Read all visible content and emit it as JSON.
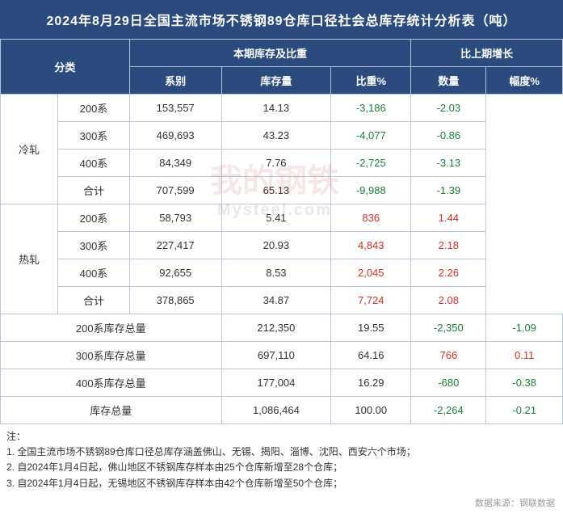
{
  "title": "2024年8月29日全国主流市场不锈钢89仓库口径社会总库存统计分析表（吨）",
  "headers": {
    "category": "分类",
    "currentGroup": "本期库存及比重",
    "changeGroup": "比上期增长",
    "series": "系别",
    "inventory": "库存量",
    "weight": "比重%",
    "qty": "数量",
    "pct": "幅度%"
  },
  "groups": [
    {
      "name": "冷轧",
      "rows": [
        {
          "series": "200系",
          "inventory": "153,557",
          "weight": "14.13",
          "qty": "-3,186",
          "pct": "-2.03",
          "sign": "neg"
        },
        {
          "series": "300系",
          "inventory": "469,693",
          "weight": "43.23",
          "qty": "-4,077",
          "pct": "-0.86",
          "sign": "neg"
        },
        {
          "series": "400系",
          "inventory": "84,349",
          "weight": "7.76",
          "qty": "-2,725",
          "pct": "-3.13",
          "sign": "neg"
        },
        {
          "series": "合计",
          "inventory": "707,599",
          "weight": "65.13",
          "qty": "-9,988",
          "pct": "-1.39",
          "sign": "neg"
        }
      ]
    },
    {
      "name": "热轧",
      "rows": [
        {
          "series": "200系",
          "inventory": "58,793",
          "weight": "5.41",
          "qty": "836",
          "pct": "1.44",
          "sign": "pos"
        },
        {
          "series": "300系",
          "inventory": "227,417",
          "weight": "20.93",
          "qty": "4,843",
          "pct": "2.18",
          "sign": "pos"
        },
        {
          "series": "400系",
          "inventory": "92,655",
          "weight": "8.53",
          "qty": "2,045",
          "pct": "2.26",
          "sign": "pos"
        },
        {
          "series": "合计",
          "inventory": "378,865",
          "weight": "34.87",
          "qty": "7,724",
          "pct": "2.08",
          "sign": "pos"
        }
      ]
    }
  ],
  "totals": [
    {
      "label": "200系库存总量",
      "inventory": "212,350",
      "weight": "19.55",
      "qty": "-2,350",
      "pct": "-1.09",
      "sign": "neg"
    },
    {
      "label": "300系库存总量",
      "inventory": "697,110",
      "weight": "64.16",
      "qty": "766",
      "pct": "0.11",
      "sign": "pos"
    },
    {
      "label": "400系库存总量",
      "inventory": "177,004",
      "weight": "16.29",
      "qty": "-680",
      "pct": "-0.38",
      "sign": "neg"
    },
    {
      "label": "库存总量",
      "inventory": "1,086,464",
      "weight": "100.00",
      "qty": "-2,264",
      "pct": "-0.21",
      "sign": "neg"
    }
  ],
  "notesTitle": "注：",
  "notes": [
    "1. 全国主流市场不锈钢89仓库口径总库存涵盖佛山、无锡、揭阳、淄博、沈阳、西安六个市场；",
    "2. 自2024年1月4日起，佛山地区不锈钢库存样本由25个仓库新增至28个仓库；",
    "3. 自2024年1月4日起，无锡地区不锈钢库存样本由42个仓库新增至50个仓库；"
  ],
  "source": "数据来源：钢联数据",
  "watermark": {
    "main": "我的钢铁",
    "sub": "Mysteel.com"
  },
  "colors": {
    "headerBg": "#2b4a7e",
    "headerText": "#ffffff",
    "border": "#b8c5dc",
    "neg": "#1a7f37",
    "pos": "#d93025",
    "text": "#333333"
  }
}
